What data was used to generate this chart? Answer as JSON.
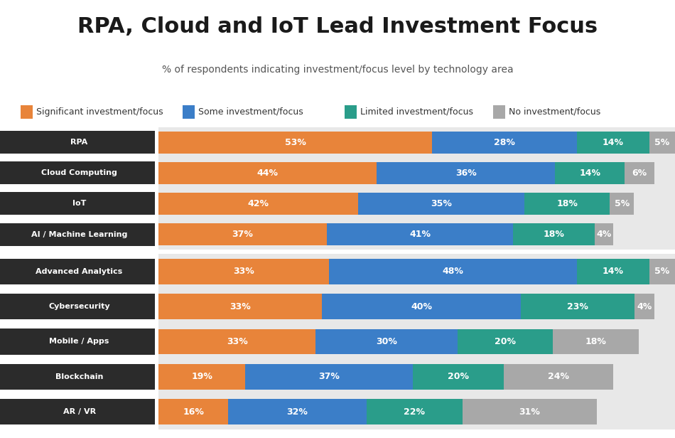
{
  "title_line1": "RPA, Cloud and IoT Lead Investment Focus",
  "title_line2": "% of respondents indicating investment/focus level by technology area",
  "bg_white": "#ffffff",
  "bg_light": "#e8e8e8",
  "bg_legend": "#dcdcdc",
  "bg_dark_label": "#2b2b2b",
  "colors": [
    "#E8843A",
    "#3B7EC8",
    "#2A9D8A",
    "#A8A8A8"
  ],
  "legend_labels": [
    "Significant investment/focus",
    "Some investment/focus",
    "Limited investment/focus",
    "No investment/focus"
  ],
  "group1_rows": [
    {
      "label": "RPA",
      "values": [
        53,
        28,
        14,
        5
      ]
    },
    {
      "label": "Cloud Computing",
      "values": [
        44,
        36,
        14,
        6
      ]
    },
    {
      "label": "IoT",
      "values": [
        42,
        35,
        18,
        5
      ]
    },
    {
      "label": "AI / Machine Learning",
      "values": [
        37,
        41,
        18,
        4
      ]
    }
  ],
  "group2_rows": [
    {
      "label": "Advanced Analytics",
      "values": [
        33,
        48,
        14,
        5
      ]
    },
    {
      "label": "Cybersecurity",
      "values": [
        33,
        40,
        23,
        4
      ]
    },
    {
      "label": "Mobile / Apps",
      "values": [
        33,
        30,
        20,
        18
      ]
    },
    {
      "label": "Blockchain",
      "values": [
        19,
        37,
        20,
        24
      ]
    },
    {
      "label": "AR / VR",
      "values": [
        16,
        32,
        22,
        31
      ]
    }
  ],
  "title_fontsize": 22,
  "subtitle_fontsize": 10,
  "bar_label_fontsize": 9,
  "legend_fontsize": 9
}
